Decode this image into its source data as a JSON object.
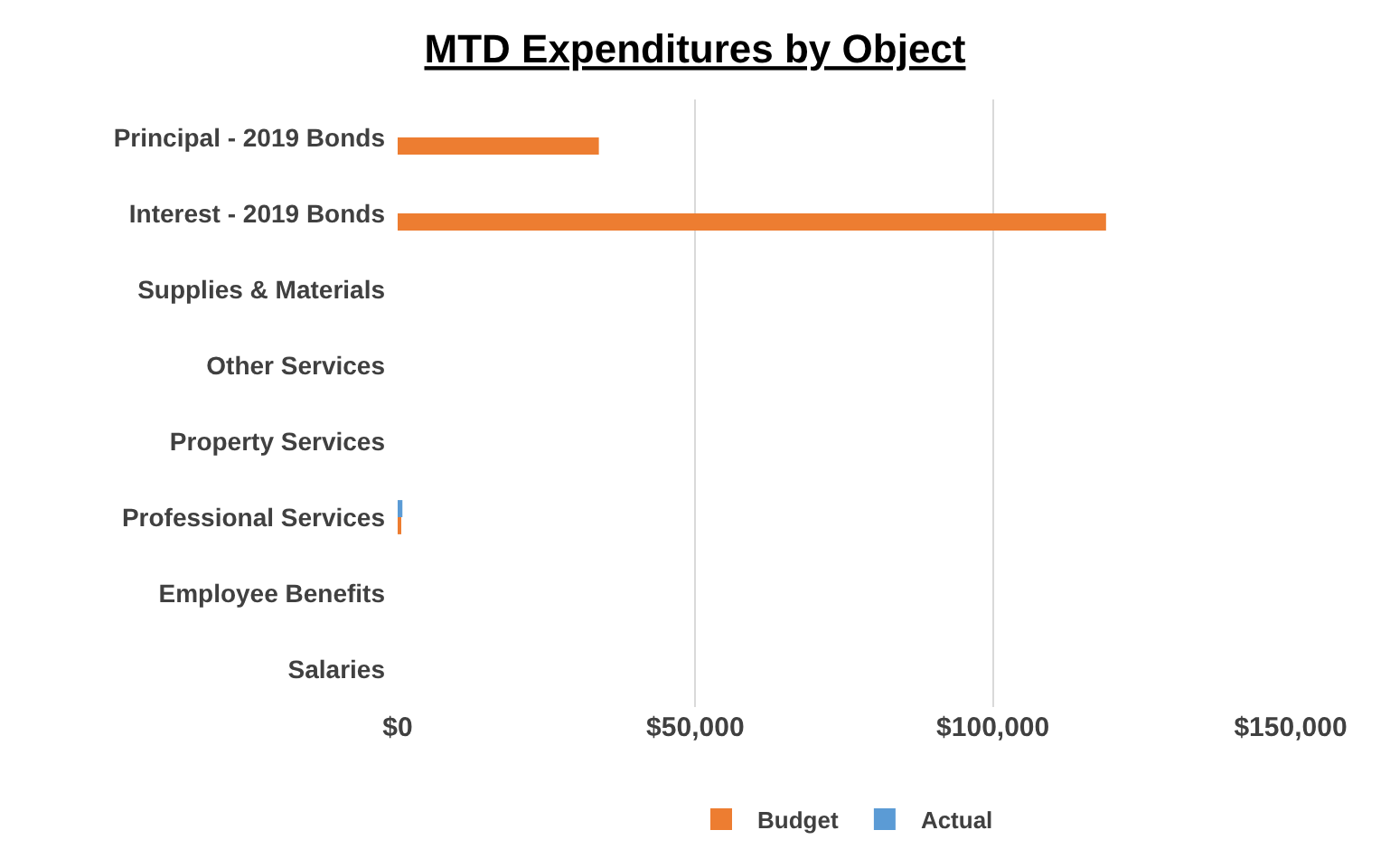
{
  "chart_data": {
    "type": "bar",
    "orientation": "horizontal",
    "title": "MTD Expenditures by Object",
    "categories": [
      "Principal - 2019 Bonds",
      "Interest - 2019 Bonds",
      "Supplies & Materials",
      "Other Services",
      "Property Services",
      "Professional Services",
      "Employee Benefits",
      "Salaries"
    ],
    "series": [
      {
        "name": "Budget",
        "color": "#ed7d31",
        "values": [
          33800,
          119000,
          0,
          0,
          0,
          500,
          0,
          0
        ]
      },
      {
        "name": "Actual",
        "color": "#5b9bd5",
        "values": [
          0,
          0,
          0,
          0,
          0,
          800,
          0,
          0
        ]
      }
    ],
    "xlim": [
      0,
      150000
    ],
    "xticks": [
      {
        "value": 0,
        "label": "$0"
      },
      {
        "value": 50000,
        "label": "$50,000"
      },
      {
        "value": 100000,
        "label": "$100,000"
      },
      {
        "value": 150000,
        "label": "$150,000"
      }
    ],
    "grid": "x",
    "legend": "bottom"
  }
}
